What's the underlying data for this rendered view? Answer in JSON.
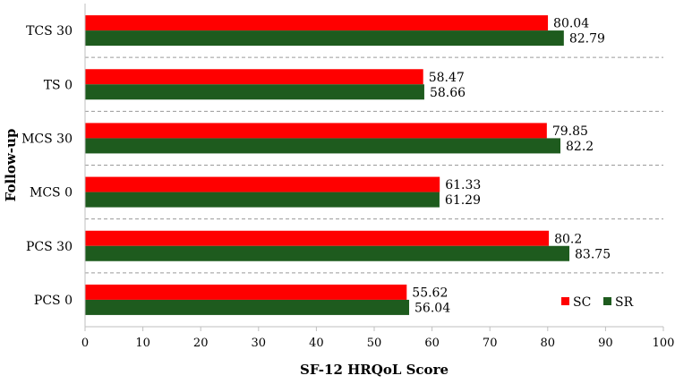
{
  "chart_data": {
    "type": "bar",
    "orientation": "horizontal",
    "categories": [
      "TCS 30",
      "TS 0",
      "MCS 30",
      "MCS 0",
      "PCS 30",
      "PCS 0"
    ],
    "series": [
      {
        "name": "SC",
        "color": "#ff0000",
        "values": [
          80.04,
          58.47,
          79.85,
          61.33,
          80.2,
          55.62
        ],
        "labels": [
          "80.04",
          "58.47",
          "79.85",
          "61.33",
          "80.2",
          "55.62"
        ]
      },
      {
        "name": "SR",
        "color": "#1e5b1e",
        "values": [
          82.79,
          58.66,
          82.2,
          61.29,
          83.75,
          56.04
        ],
        "labels": [
          "82.79",
          "58.66",
          "82.2",
          "61.29",
          "83.75",
          "56.04"
        ]
      }
    ],
    "xlabel": "SF-12 HRQoL Score",
    "ylabel": "Follow-up",
    "xlim": [
      0,
      100
    ],
    "xticks": [
      "0",
      "10",
      "20",
      "30",
      "40",
      "50",
      "60",
      "70",
      "80",
      "90",
      "100"
    ],
    "grid": "horizontal dashed separators",
    "legend": "bottom-right"
  }
}
